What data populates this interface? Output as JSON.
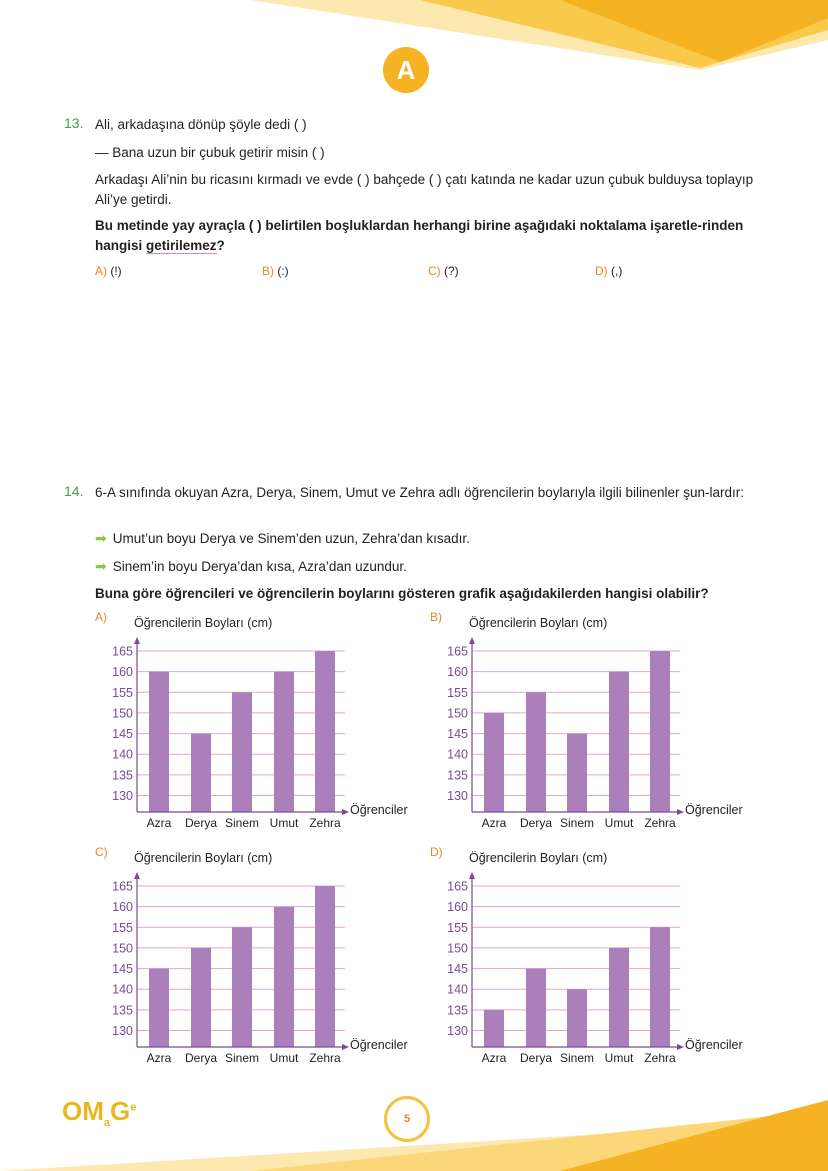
{
  "header": {
    "section_badge": "A"
  },
  "q13": {
    "number": "13.",
    "line1": "Ali, arkadaşına dönüp şöyle dedi ( )",
    "line2": "— Bana uzun bir çubuk getirir misin ( )",
    "line3": "Arkadaşı Ali’nin bu ricasını kırmadı ve evde ( ) bahçede ( ) çatı katında ne kadar uzun çubuk bulduysa toplayıp Ali’ye getirdi.",
    "question_a": "Bu metinde yay ayraçla ( ) belirtilen boşluklardan herhangi birine aşağıdaki noktalama işaretle-rinden hangisi ",
    "question_under": "getirilemez",
    "question_end": "?",
    "options": [
      {
        "letter": "A)",
        "text": "(!)"
      },
      {
        "letter": "B)",
        "text": "(:)"
      },
      {
        "letter": "C)",
        "text": "(?)"
      },
      {
        "letter": "D)",
        "text": "(,)"
      }
    ]
  },
  "q14": {
    "number": "14.",
    "intro": "6-A sınıfında okuyan Azra, Derya, Sinem, Umut ve Zehra adlı öğrencilerin boylarıyla ilgili bilinenler şun-lardır:",
    "bullets": [
      "Umut’un boyu Derya ve Sinem’den uzun, Zehra’dan kısadır.",
      "Sinem’in boyu Derya’dan kısa, Azra’dan uzundur."
    ],
    "question": "Buna göre öğrencileri ve öğrencilerin boylarını gösteren grafik aşağıdakilerden hangisi olabilir?"
  },
  "colors": {
    "bar": "#ab7fb9",
    "axis": "#7b4a96",
    "grid": "#e6a3d4",
    "accent": "#f5b323",
    "number": "#3aa44a",
    "option": "#e8862a"
  },
  "chart_data": [
    {
      "type": "bar",
      "option": "A)",
      "title": "Öğrencilerin Boyları (cm)",
      "xlabel": "Öğrenciler",
      "categories": [
        "Azra",
        "Derya",
        "Sinem",
        "Umut",
        "Zehra"
      ],
      "values": [
        160,
        145,
        155,
        160,
        165
      ],
      "yticks": [
        130,
        135,
        140,
        145,
        150,
        155,
        160,
        165
      ],
      "ylim": [
        126,
        165
      ],
      "grid": true
    },
    {
      "type": "bar",
      "option": "B)",
      "title": "Öğrencilerin Boyları (cm)",
      "xlabel": "Öğrenciler",
      "categories": [
        "Azra",
        "Derya",
        "Sinem",
        "Umut",
        "Zehra"
      ],
      "values": [
        150,
        155,
        145,
        160,
        165
      ],
      "yticks": [
        130,
        135,
        140,
        145,
        150,
        155,
        160,
        165
      ],
      "ylim": [
        126,
        165
      ],
      "grid": true
    },
    {
      "type": "bar",
      "option": "C)",
      "title": "Öğrencilerin Boyları (cm)",
      "xlabel": "Öğrenciler",
      "categories": [
        "Azra",
        "Derya",
        "Sinem",
        "Umut",
        "Zehra"
      ],
      "values": [
        145,
        150,
        155,
        160,
        165
      ],
      "yticks": [
        130,
        135,
        140,
        145,
        150,
        155,
        160,
        165
      ],
      "ylim": [
        126,
        165
      ],
      "grid": true
    },
    {
      "type": "bar",
      "option": "D)",
      "title": "Öğrencilerin Boyları (cm)",
      "xlabel": "Öğrenciler",
      "categories": [
        "Azra",
        "Derya",
        "Sinem",
        "Umut",
        "Zehra"
      ],
      "values": [
        135,
        145,
        140,
        150,
        155
      ],
      "yticks": [
        130,
        135,
        140,
        145,
        150,
        155,
        160,
        165
      ],
      "ylim": [
        126,
        165
      ],
      "grid": true
    }
  ],
  "footer": {
    "logo": "OMaGe",
    "page_number": "5"
  }
}
